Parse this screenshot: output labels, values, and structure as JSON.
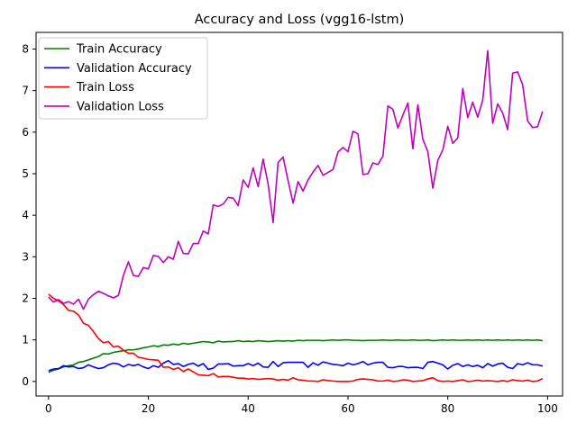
{
  "chart_data": {
    "type": "line",
    "title": "Accuracy and Loss (vgg16-lstm)",
    "xlabel": "",
    "ylabel": "",
    "xlim": [
      -2.5,
      103
    ],
    "ylim": [
      -0.35,
      8.4
    ],
    "xticks": [
      0,
      20,
      40,
      60,
      80,
      100
    ],
    "yticks": [
      0,
      1,
      2,
      3,
      4,
      5,
      6,
      7,
      8
    ],
    "grid": false,
    "legend": "top-left",
    "x_start": 0,
    "series": [
      {
        "name": "Train Accuracy",
        "color": "#008000",
        "values": [
          0.22,
          0.27,
          0.3,
          0.35,
          0.38,
          0.4,
          0.46,
          0.48,
          0.52,
          0.56,
          0.6,
          0.67,
          0.66,
          0.7,
          0.72,
          0.74,
          0.76,
          0.76,
          0.78,
          0.81,
          0.83,
          0.86,
          0.84,
          0.88,
          0.87,
          0.9,
          0.88,
          0.92,
          0.9,
          0.92,
          0.94,
          0.96,
          0.95,
          0.93,
          0.97,
          0.95,
          0.96,
          0.96,
          0.98,
          0.96,
          0.97,
          0.96,
          0.98,
          0.97,
          0.96,
          0.97,
          0.98,
          0.97,
          0.98,
          0.97,
          0.99,
          0.98,
          0.99,
          0.99,
          0.99,
          0.98,
          0.99,
          1.0,
          0.99,
          1.0,
          1.0,
          0.99,
          0.99,
          0.98,
          0.99,
          0.99,
          0.99,
          1.0,
          0.99,
          0.99,
          1.0,
          0.99,
          0.99,
          1.0,
          0.99,
          0.99,
          1.0,
          0.98,
          0.99,
          1.0,
          0.99,
          1.0,
          0.99,
          0.99,
          1.0,
          0.99,
          1.0,
          0.99,
          1.0,
          0.99,
          1.0,
          0.99,
          1.0,
          0.99,
          1.0,
          0.99,
          1.0,
          0.99,
          1.0,
          0.98
        ]
      },
      {
        "name": "Validation Accuracy",
        "color": "#0000ff",
        "values": [
          0.26,
          0.3,
          0.31,
          0.38,
          0.35,
          0.36,
          0.31,
          0.33,
          0.4,
          0.35,
          0.31,
          0.33,
          0.4,
          0.44,
          0.42,
          0.35,
          0.41,
          0.38,
          0.41,
          0.35,
          0.31,
          0.38,
          0.34,
          0.44,
          0.5,
          0.41,
          0.43,
          0.36,
          0.41,
          0.44,
          0.37,
          0.43,
          0.29,
          0.32,
          0.42,
          0.42,
          0.43,
          0.37,
          0.38,
          0.38,
          0.43,
          0.38,
          0.44,
          0.35,
          0.34,
          0.48,
          0.36,
          0.45,
          0.46,
          0.46,
          0.46,
          0.46,
          0.34,
          0.45,
          0.39,
          0.47,
          0.44,
          0.41,
          0.4,
          0.38,
          0.44,
          0.4,
          0.43,
          0.48,
          0.4,
          0.44,
          0.46,
          0.46,
          0.34,
          0.33,
          0.36,
          0.36,
          0.33,
          0.34,
          0.34,
          0.31,
          0.46,
          0.48,
          0.44,
          0.4,
          0.3,
          0.39,
          0.43,
          0.36,
          0.4,
          0.36,
          0.39,
          0.33,
          0.43,
          0.37,
          0.42,
          0.44,
          0.34,
          0.31,
          0.43,
          0.4,
          0.45,
          0.4,
          0.4,
          0.37
        ]
      },
      {
        "name": "Train Loss",
        "color": "#ff0000",
        "values": [
          2.1,
          2.0,
          1.94,
          1.85,
          1.71,
          1.69,
          1.6,
          1.4,
          1.35,
          1.2,
          1.03,
          0.93,
          0.96,
          0.83,
          0.85,
          0.75,
          0.68,
          0.68,
          0.58,
          0.56,
          0.53,
          0.52,
          0.51,
          0.34,
          0.35,
          0.29,
          0.33,
          0.24,
          0.3,
          0.23,
          0.16,
          0.15,
          0.14,
          0.19,
          0.11,
          0.12,
          0.12,
          0.1,
          0.08,
          0.08,
          0.06,
          0.07,
          0.05,
          0.06,
          0.07,
          0.06,
          0.03,
          0.05,
          0.03,
          0.09,
          0.04,
          0.03,
          0.01,
          0.01,
          0.0,
          0.04,
          0.02,
          0.01,
          0.0,
          0.0,
          0.0,
          0.01,
          0.05,
          0.06,
          0.05,
          0.04,
          0.01,
          0.01,
          0.03,
          0.0,
          0.01,
          0.04,
          0.03,
          0.0,
          0.01,
          0.02,
          0.06,
          0.09,
          0.02,
          0.0,
          0.01,
          0.0,
          0.02,
          0.04,
          0.0,
          0.01,
          0.03,
          0.01,
          0.02,
          0.01,
          0.0,
          0.02,
          0.0,
          0.04,
          0.02,
          0.01,
          0.03,
          0.0,
          0.01,
          0.07
        ]
      },
      {
        "name": "Validation Loss",
        "color": "#bf00bf",
        "values": [
          2.03,
          1.91,
          1.97,
          1.88,
          1.92,
          1.86,
          1.98,
          1.74,
          1.98,
          2.09,
          2.17,
          2.12,
          2.06,
          2.01,
          2.07,
          2.55,
          2.88,
          2.55,
          2.53,
          2.74,
          2.71,
          3.03,
          3.01,
          2.86,
          3.0,
          2.94,
          3.37,
          3.08,
          3.07,
          3.32,
          3.32,
          3.62,
          3.55,
          4.25,
          4.21,
          4.27,
          4.43,
          4.41,
          4.23,
          4.85,
          4.67,
          5.14,
          4.69,
          5.35,
          4.75,
          3.82,
          5.27,
          5.4,
          4.83,
          4.29,
          4.81,
          4.58,
          4.85,
          5.04,
          5.2,
          4.96,
          5.03,
          5.1,
          5.52,
          5.63,
          5.53,
          6.02,
          5.96,
          4.98,
          5.0,
          5.26,
          5.22,
          5.42,
          6.63,
          6.55,
          6.1,
          6.41,
          6.7,
          5.6,
          6.66,
          5.83,
          5.53,
          4.65,
          5.32,
          5.57,
          6.14,
          5.73,
          5.86,
          7.05,
          6.35,
          6.72,
          6.36,
          6.77,
          7.96,
          6.21,
          6.68,
          6.46,
          6.06,
          7.42,
          7.45,
          7.14,
          6.27,
          6.11,
          6.13,
          6.5
        ]
      }
    ]
  }
}
